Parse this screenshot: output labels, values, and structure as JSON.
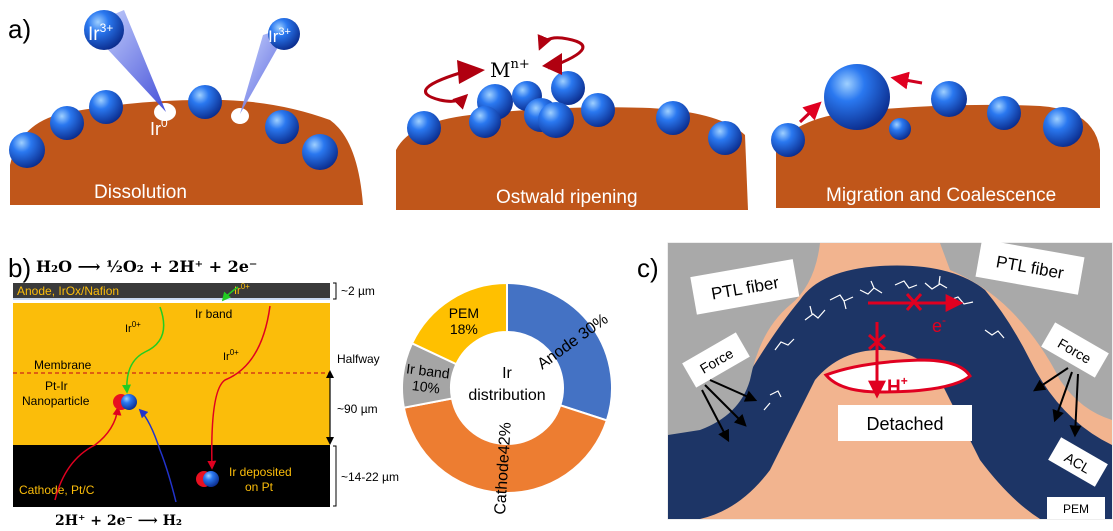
{
  "panel_a": {
    "label": "a)",
    "ion_label": "Ir",
    "ion_charge": "3+",
    "reduced_label": "Ir",
    "reduced_charge": "0",
    "ripening_label": "M",
    "ripening_charge": "n+",
    "captions": [
      "Dissolution",
      "Ostwald ripening",
      "Migration and Coalescence"
    ]
  },
  "panel_b": {
    "label": "b)",
    "eq_top": "H₂O ⟶ ½O₂ + 2H⁺ + 2e⁻",
    "eq_bottom": "2H⁺ + 2e⁻ ⟶ H₂",
    "layers": {
      "anode": "Anode, IrOx/Nafion",
      "ir_band": "Ir band",
      "membrane": "Membrane",
      "nanoparticle_line1": "Pt-Ir",
      "nanoparticle_line2": "Nanoparticle",
      "cathode": "Cathode, Pt/C",
      "deposit_line1": "Ir deposited",
      "deposit_line2": "on Pt"
    },
    "ion": "Ir",
    "ion_charge": "0+",
    "dimensions": {
      "anode": "~2 µm",
      "halfway": "Halfway",
      "membrane": "~90 µm",
      "cathode": "~14-22 µm"
    }
  },
  "chart_data": {
    "type": "pie",
    "center_label_line1": "Ir",
    "center_label_line2": "distribution",
    "slices": [
      {
        "name": "Anode",
        "value": 30,
        "label": "Anode 30%",
        "color": "#4472c4"
      },
      {
        "name": "Cathode",
        "value": 42,
        "label": "Cathode42%",
        "color": "#ed7d31"
      },
      {
        "name": "Ir band",
        "value": 10,
        "label_line1": "Ir band",
        "label_line2": "10%",
        "color": "#a5a5a5"
      },
      {
        "name": "PEM",
        "value": 18,
        "label_line1": "PEM",
        "label_line2": "18%",
        "color": "#ffc000"
      }
    ]
  },
  "panel_c": {
    "label": "c)",
    "ptl_left": "PTL fiber",
    "ptl_right": "PTL fiber",
    "force_left": "Force",
    "force_right": "Force",
    "electron": "e",
    "electron_charge": "-",
    "proton": "H",
    "proton_charge": "+",
    "detached": "Detached",
    "acl": "ACL",
    "pem": "PEM"
  },
  "colors": {
    "substrate": "#c0561a",
    "particle": "#1f5fe0",
    "anode_layer": "#3a3a3a",
    "membrane": "#fbbd0a",
    "cathode_layer": "#000000",
    "ptl": "#a9a9a9",
    "acl": "#1d3566",
    "pem_c": "#f2b48f",
    "arrow_red": "#c0001a"
  }
}
